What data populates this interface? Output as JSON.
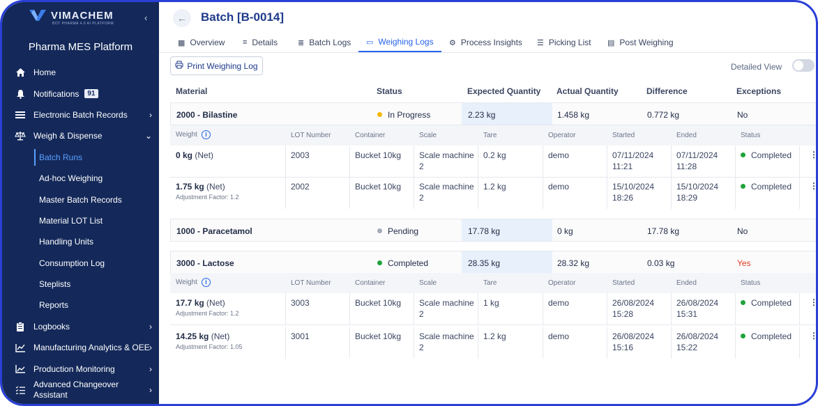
{
  "sidebar": {
    "logo_text": "VIMACHEM",
    "logo_subtitle": "BOT PHARMA 4.0 AI PLATFORM",
    "platform_title": "Pharma MES Platform",
    "items": [
      {
        "label": "Home",
        "icon": "home-icon"
      },
      {
        "label": "Notifications",
        "icon": "bell-icon",
        "badge": "91"
      },
      {
        "label": "Electronic Batch Records",
        "icon": "list-icon"
      },
      {
        "label": "Weigh & Dispense",
        "icon": "scale-icon"
      }
    ],
    "sub_items": [
      "Batch Runs",
      "Ad-hoc Weighing",
      "Master Batch Records",
      "Material LOT List",
      "Handling Units",
      "Consumption Log",
      "Steplists",
      "Reports"
    ],
    "bottom_items": [
      {
        "label": "Logbooks",
        "icon": "clipboard-icon"
      },
      {
        "label": "Manufacturing Analytics & OEE",
        "icon": "chart-icon"
      },
      {
        "label": "Production Monitoring",
        "icon": "monitor-chart-icon"
      },
      {
        "label_line1": "Advanced Changeover",
        "label_line2": "Assistant",
        "icon": "checklist-icon"
      }
    ]
  },
  "header": {
    "title": "Batch [B-0014]"
  },
  "tabs": [
    "Overview",
    "Details",
    "Batch Logs",
    "Weighing Logs",
    "Process Insights",
    "Picking List",
    "Post Weighing"
  ],
  "toolbar": {
    "print_label": "Print Weighing Log",
    "detailed_view_label": "Detailed View"
  },
  "table": {
    "headers": [
      "Material",
      "Status",
      "Expected Quantity",
      "Actual Quantity",
      "Difference",
      "Exceptions"
    ],
    "sub_headers": [
      "Weight",
      "LOT Number",
      "Container",
      "Scale",
      "Tare",
      "Operator",
      "Started",
      "Ended",
      "Status"
    ],
    "materials": [
      {
        "name": "2000 - Bilastine",
        "status": "In Progress",
        "expected": "2.23 kg",
        "actual": "1.458 kg",
        "difference": "0.772 kg",
        "exceptions": "No",
        "logs": [
          {
            "weight": "0 kg",
            "net": "(Net)",
            "adjustment": "",
            "lot": "2003",
            "container": "Bucket 10kg",
            "scale1": "Scale machine",
            "scale2": "2",
            "tare": "0.2 kg",
            "operator": "demo",
            "started1": "07/11/2024",
            "started2": "11:21",
            "ended1": "07/11/2024",
            "ended2": "11:28",
            "status": "Completed"
          },
          {
            "weight": "1.75 kg",
            "net": "(Net)",
            "adjustment": "Adjustment Factor: 1.2",
            "lot": "2002",
            "container": "Bucket 10kg",
            "scale1": "Scale machine",
            "scale2": "2",
            "tare": "1.2 kg",
            "operator": "demo",
            "started1": "15/10/2024",
            "started2": "18:26",
            "ended1": "15/10/2024",
            "ended2": "18:29",
            "status": "Completed"
          }
        ]
      },
      {
        "name": "1000 - Paracetamol",
        "status": "Pending",
        "expected": "17.78 kg",
        "actual": "0 kg",
        "difference": "17.78 kg",
        "exceptions": "No"
      },
      {
        "name": "3000 - Lactose",
        "status": "Completed",
        "expected": "28.35 kg",
        "actual": "28.32 kg",
        "difference": "0.03 kg",
        "exceptions": "Yes",
        "logs": [
          {
            "weight": "17.7 kg",
            "net": "(Net)",
            "adjustment": "Adjustment Factor: 1.2",
            "lot": "3003",
            "container": "Bucket 10kg",
            "scale1": "Scale machine",
            "scale2": "2",
            "tare": "1 kg",
            "operator": "demo",
            "started1": "26/08/2024",
            "started2": "15:28",
            "ended1": "26/08/2024",
            "ended2": "15:31",
            "status": "Completed"
          },
          {
            "weight": "14.25 kg",
            "net": "(Net)",
            "adjustment": "Adjustment Factor: 1.05",
            "lot": "3001",
            "container": "Bucket 10kg",
            "scale1": "Scale machine",
            "scale2": "2",
            "tare": "1.2 kg",
            "operator": "demo",
            "started1": "26/08/2024",
            "started2": "15:16",
            "ended1": "26/08/2024",
            "ended2": "15:22",
            "status": "Completed"
          }
        ]
      }
    ]
  },
  "colors": {
    "sidebar_bg": "#14295a",
    "accent": "#2563eb",
    "in_progress": "#f5b800",
    "pending": "#a4abb8",
    "completed": "#1fa33a",
    "exception_yes": "#e03a1e"
  }
}
